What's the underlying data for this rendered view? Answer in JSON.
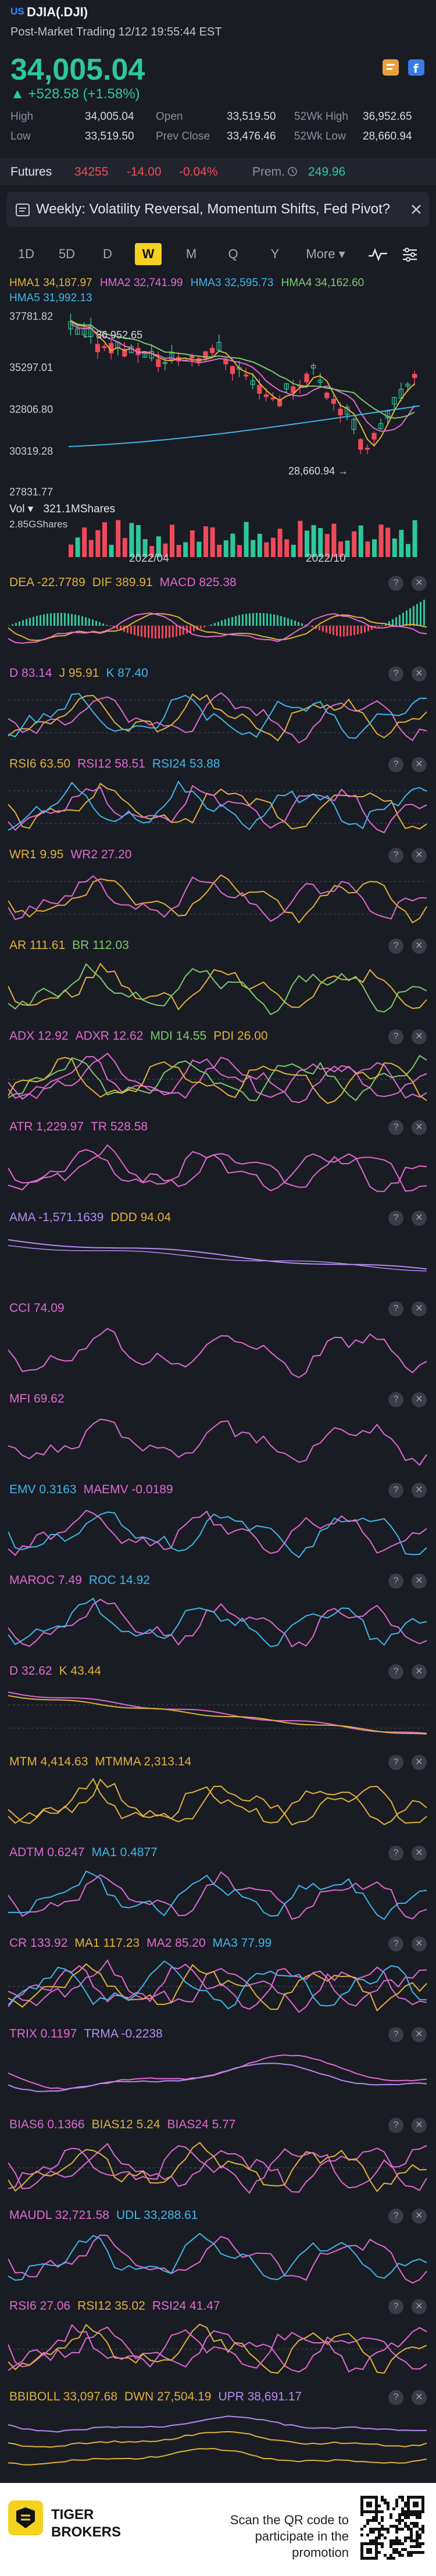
{
  "header": {
    "market": "US",
    "symbol": "DJIA(.DJI)",
    "subtitle": "Post-Market Trading 12/12 19:55:44 EST"
  },
  "quote": {
    "price": "34,005.04",
    "change": "▲ +528.58 (+1.58%)"
  },
  "stats": {
    "high_label": "High",
    "high": "34,005.04",
    "open_label": "Open",
    "open": "33,519.50",
    "wk52_high_label": "52Wk High",
    "wk52_high": "36,952.65",
    "low_label": "Low",
    "low": "33,519.50",
    "prev_close_label": "Prev Close",
    "prev_close": "33,476.46",
    "wk52_low_label": "52Wk Low",
    "wk52_low": "28,660.94"
  },
  "futures": {
    "label": "Futures",
    "price": "34255",
    "change": "-14.00",
    "pct": "-0.04%",
    "prem_label": "Prem.",
    "prem": "249.96"
  },
  "weekly": {
    "text": "Weekly: Volatility Reversal, Momentum Shifts, Fed Pivot?"
  },
  "tabs": [
    "1D",
    "5D",
    "D",
    "W",
    "M",
    "Q",
    "Y",
    "More ▾"
  ],
  "active_tab": "W",
  "colors": {
    "up": "#2dc89a",
    "down": "#ee4a5a",
    "accent": "#f4d21e",
    "bg": "#1a1c24"
  },
  "main_chart": {
    "hma_line1": [
      {
        "t": "HMA1 34,187.97",
        "c": "#e0b23a"
      },
      {
        "t": "HMA2 32,741.99",
        "c": "#e06ad0"
      },
      {
        "t": "HMA3 32,595.73",
        "c": "#3fb7e8"
      },
      {
        "t": "HMA4 34,162.60",
        "c": "#7bc96f"
      }
    ],
    "hma5": "HMA5 31,992.13",
    "y_axis": [
      "37781.82",
      "35297.01",
      "32806.80",
      "30319.28",
      "27831.77"
    ],
    "high_marker": "36,952.65",
    "low_marker": "28,660.94",
    "x_axis": [
      "2022/04",
      "2022/10"
    ]
  },
  "volume": {
    "label": "Vol ▾",
    "value": "321.1MShares",
    "max": "2.85GShares"
  },
  "indicators": [
    {
      "legend": [
        {
          "t": "DEA -22.7789",
          "c": "#e0b23a"
        },
        {
          "t": "DIF 389.91",
          "c": "#e0b23a"
        },
        {
          "t": "MACD 825.38",
          "c": "#e06ad0"
        }
      ]
    },
    {
      "legend": [
        {
          "t": "D 83.14",
          "c": "#e06ad0"
        },
        {
          "t": "J 95.91",
          "c": "#e0b23a"
        },
        {
          "t": "K 87.40",
          "c": "#3fb7e8"
        }
      ]
    },
    {
      "legend": [
        {
          "t": "RSI6 63.50",
          "c": "#e0b23a"
        },
        {
          "t": "RSI12 58.51",
          "c": "#e06ad0"
        },
        {
          "t": "RSI24 53.88",
          "c": "#3fb7e8"
        }
      ]
    },
    {
      "legend": [
        {
          "t": "WR1 9.95",
          "c": "#e0b23a"
        },
        {
          "t": "WR2 27.20",
          "c": "#e06ad0"
        }
      ]
    },
    {
      "legend": [
        {
          "t": "AR 111.61",
          "c": "#e0b23a"
        },
        {
          "t": "BR 112.03",
          "c": "#7bc96f"
        }
      ]
    },
    {
      "legend": [
        {
          "t": "ADX 12.92",
          "c": "#e06ad0"
        },
        {
          "t": "ADXR 12.62",
          "c": "#e06ad0"
        },
        {
          "t": "MDI 14.55",
          "c": "#7bc96f"
        },
        {
          "t": "PDI 26.00",
          "c": "#e0b23a"
        }
      ]
    },
    {
      "legend": [
        {
          "t": "ATR 1,229.97",
          "c": "#e06ad0"
        },
        {
          "t": "TR 528.58",
          "c": "#e06ad0"
        }
      ]
    },
    {
      "legend": [
        {
          "t": "AMA -1,571.1639",
          "c": "#b58cf0"
        },
        {
          "t": "DDD 94.04",
          "c": "#e0b23a"
        }
      ]
    },
    {
      "legend": [
        {
          "t": "CCI 74.09",
          "c": "#e06ad0"
        }
      ]
    },
    {
      "legend": [
        {
          "t": "MFI 69.62",
          "c": "#e06ad0"
        }
      ]
    },
    {
      "legend": [
        {
          "t": "EMV 0.3163",
          "c": "#3fb7e8"
        },
        {
          "t": "MAEMV -0.0189",
          "c": "#e06ad0"
        }
      ]
    },
    {
      "legend": [
        {
          "t": "MAROC 7.49",
          "c": "#e06ad0"
        },
        {
          "t": "ROC 14.92",
          "c": "#3fb7e8"
        }
      ]
    },
    {
      "legend": [
        {
          "t": "D 32.62",
          "c": "#e06ad0"
        },
        {
          "t": "K 43.44",
          "c": "#e0b23a"
        }
      ]
    },
    {
      "legend": [
        {
          "t": "MTM 4,414.63",
          "c": "#e0b23a"
        },
        {
          "t": "MTMMA 2,313.14",
          "c": "#e0b23a"
        }
      ]
    },
    {
      "legend": [
        {
          "t": "ADTM 0.6247",
          "c": "#e06ad0"
        },
        {
          "t": "MA1 0.4877",
          "c": "#3fb7e8"
        }
      ]
    },
    {
      "legend": [
        {
          "t": "CR 133.92",
          "c": "#e06ad0"
        },
        {
          "t": "MA1 117.23",
          "c": "#e0b23a"
        },
        {
          "t": "MA2 85.20",
          "c": "#e06ad0"
        },
        {
          "t": "MA3 77.99",
          "c": "#3fb7e8"
        }
      ]
    },
    {
      "legend": [
        {
          "t": "TRIX 0.1197",
          "c": "#e06ad0"
        },
        {
          "t": "TRMA -0.2238",
          "c": "#b58cf0"
        }
      ]
    },
    {
      "legend": [
        {
          "t": "BIAS6 0.1366",
          "c": "#e06ad0"
        },
        {
          "t": "BIAS12 5.24",
          "c": "#e0b23a"
        },
        {
          "t": "BIAS24 5.77",
          "c": "#e06ad0"
        }
      ]
    },
    {
      "legend": [
        {
          "t": "MAUDL 32,721.58",
          "c": "#e06ad0"
        },
        {
          "t": "UDL 33,288.61",
          "c": "#3fb7e8"
        }
      ]
    },
    {
      "legend": [
        {
          "t": "RSI6 27.06",
          "c": "#e06ad0"
        },
        {
          "t": "RSI12 35.02",
          "c": "#e0b23a"
        },
        {
          "t": "RSI24 41.47",
          "c": "#e06ad0"
        }
      ]
    },
    {
      "legend": [
        {
          "t": "BBIBOLL 33,097.68",
          "c": "#e0b23a"
        },
        {
          "t": "DWN 27,504.19",
          "c": "#e0b23a"
        },
        {
          "t": "UPR 38,691.17",
          "c": "#b58cf0"
        }
      ]
    }
  ],
  "footer": {
    "brand_line1": "TIGER",
    "brand_line2": "BROKERS",
    "promo": "Scan the QR code to participate in the promotion"
  }
}
